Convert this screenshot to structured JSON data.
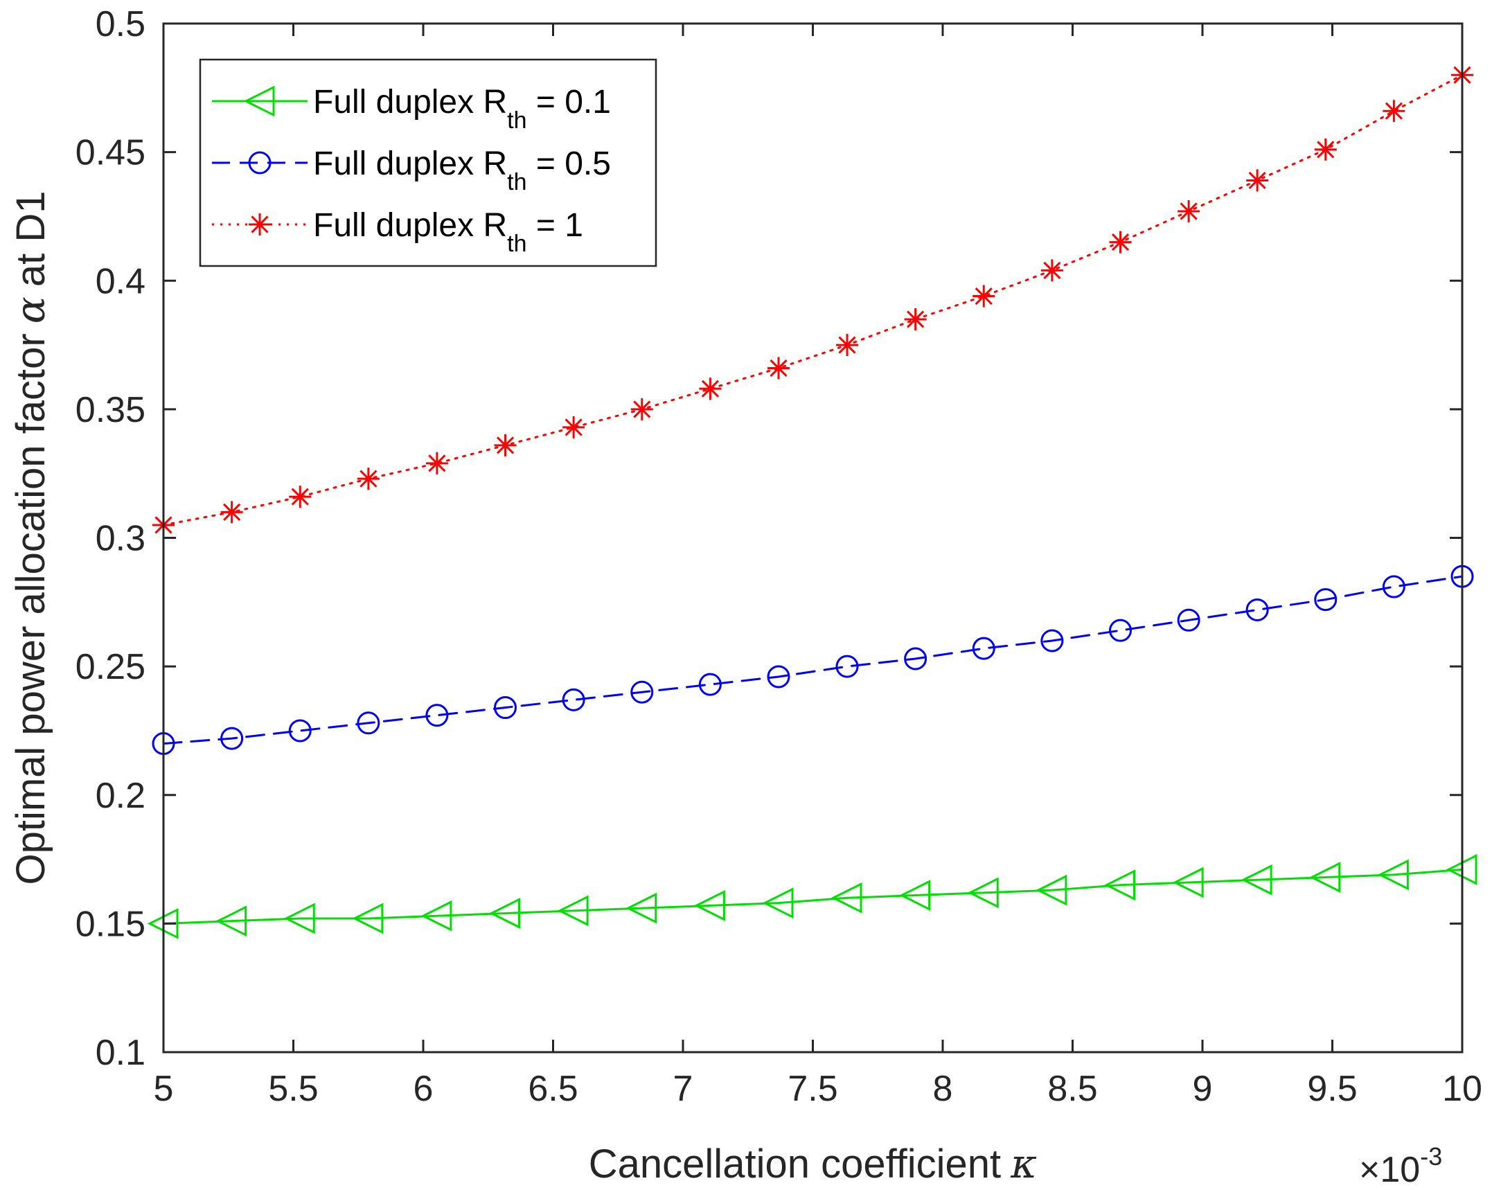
{
  "chart_data": {
    "type": "line",
    "title": "",
    "xlabel": "Cancellation coefficient",
    "xlabel_symbol": "κ",
    "ylabel": "Optimal power allocation factor",
    "ylabel_symbol": "α",
    "ylabel_suffix": "at D1",
    "x_exponent_label": "×10",
    "x_exponent": "-3",
    "xlim": [
      5,
      10
    ],
    "ylim": [
      0.1,
      0.5
    ],
    "xticks": [
      5,
      5.5,
      6,
      6.5,
      7,
      7.5,
      8,
      8.5,
      9,
      9.5,
      10
    ],
    "xtick_labels": [
      "5",
      "5.5",
      "6",
      "6.5",
      "7",
      "7.5",
      "8",
      "8.5",
      "9",
      "9.5",
      "10"
    ],
    "yticks": [
      0.1,
      0.15,
      0.2,
      0.25,
      0.3,
      0.35,
      0.4,
      0.45,
      0.5
    ],
    "ytick_labels": [
      "0.1",
      "0.15",
      "0.2",
      "0.25",
      "0.3",
      "0.35",
      "0.4",
      "0.45",
      "0.5"
    ],
    "grid": false,
    "legend_position": "top-left",
    "x": [
      5.0,
      5.263,
      5.526,
      5.789,
      6.053,
      6.316,
      6.579,
      6.842,
      7.105,
      7.368,
      7.632,
      7.895,
      8.158,
      8.421,
      8.684,
      8.947,
      9.211,
      9.474,
      9.737,
      10.0
    ],
    "series": [
      {
        "name": "Full duplex R_th = 0.1",
        "legend_prefix": "Full duplex R",
        "legend_sub": "th",
        "legend_suffix": " = 0.1",
        "color": "#00e000",
        "line_style": "solid",
        "marker": "triangle-left",
        "values": [
          0.15,
          0.151,
          0.152,
          0.152,
          0.153,
          0.154,
          0.155,
          0.156,
          0.157,
          0.158,
          0.16,
          0.161,
          0.162,
          0.163,
          0.165,
          0.166,
          0.167,
          0.168,
          0.169,
          0.171
        ]
      },
      {
        "name": "Full duplex R_th = 0.5",
        "legend_prefix": "Full duplex R",
        "legend_sub": "th",
        "legend_suffix": " = 0.5",
        "color": "#0000ff",
        "line_style": "dashed",
        "marker": "circle",
        "values": [
          0.22,
          0.222,
          0.225,
          0.228,
          0.231,
          0.234,
          0.237,
          0.24,
          0.243,
          0.246,
          0.25,
          0.253,
          0.257,
          0.26,
          0.264,
          0.268,
          0.272,
          0.276,
          0.281,
          0.285
        ]
      },
      {
        "name": "Full duplex R_th = 1",
        "legend_prefix": "Full duplex R",
        "legend_sub": "th",
        "legend_suffix": " = 1",
        "color": "#ff0000",
        "line_style": "dotted",
        "marker": "asterisk",
        "values": [
          0.305,
          0.31,
          0.316,
          0.323,
          0.329,
          0.336,
          0.343,
          0.35,
          0.358,
          0.366,
          0.375,
          0.385,
          0.394,
          0.404,
          0.415,
          0.427,
          0.439,
          0.451,
          0.466,
          0.48
        ]
      }
    ]
  }
}
